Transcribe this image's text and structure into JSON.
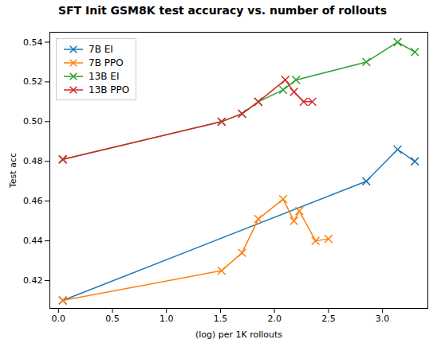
{
  "chart_data": {
    "type": "line",
    "title": "SFT Init GSM8K test accuracy vs. number of rollouts",
    "xlabel": "(log) per 1K rollouts",
    "ylabel": "Test acc",
    "series": [
      {
        "name": "7B EI",
        "color": "#1f77b4",
        "x": [
          0.04,
          2.85,
          3.14,
          3.3
        ],
        "values": [
          0.41,
          0.47,
          0.486,
          0.48
        ]
      },
      {
        "name": "7B PPO",
        "color": "#ff7f0e",
        "x": [
          0.04,
          1.51,
          1.7,
          1.85,
          2.08,
          2.18,
          2.23,
          2.38,
          2.5
        ],
        "values": [
          0.41,
          0.425,
          0.434,
          0.451,
          0.461,
          0.45,
          0.455,
          0.44,
          0.441
        ]
      },
      {
        "name": "13B EI",
        "color": "#2ca02c",
        "x": [
          0.04,
          1.51,
          1.7,
          1.85,
          2.08,
          2.2,
          2.85,
          3.14,
          3.3
        ],
        "values": [
          0.481,
          0.5,
          0.504,
          0.51,
          0.516,
          0.521,
          0.53,
          0.54,
          0.535
        ]
      },
      {
        "name": "13B PPO",
        "color": "#d62728",
        "x": [
          0.04,
          1.51,
          1.7,
          1.85,
          2.1,
          2.18,
          2.27,
          2.35
        ],
        "values": [
          0.481,
          0.5,
          0.504,
          0.51,
          0.521,
          0.515,
          0.51,
          0.51
        ]
      }
    ],
    "xlim": [
      -0.08,
      3.42
    ],
    "ylim": [
      0.406,
      0.545
    ],
    "xticks": [
      {
        "value": 0,
        "label": "0.0"
      },
      0.5,
      {
        "value": 1,
        "label": "1.0"
      },
      1.5,
      {
        "value": 2,
        "label": "2.0"
      },
      2.5,
      {
        "value": 3,
        "label": "3.0"
      }
    ],
    "yticks": [
      0.42,
      0.44,
      0.46,
      0.48,
      {
        "value": 0.5,
        "label": "0.50"
      },
      0.52,
      0.54
    ],
    "marker": "x",
    "line_style": "solid",
    "legend": "upper left",
    "grid": false
  }
}
